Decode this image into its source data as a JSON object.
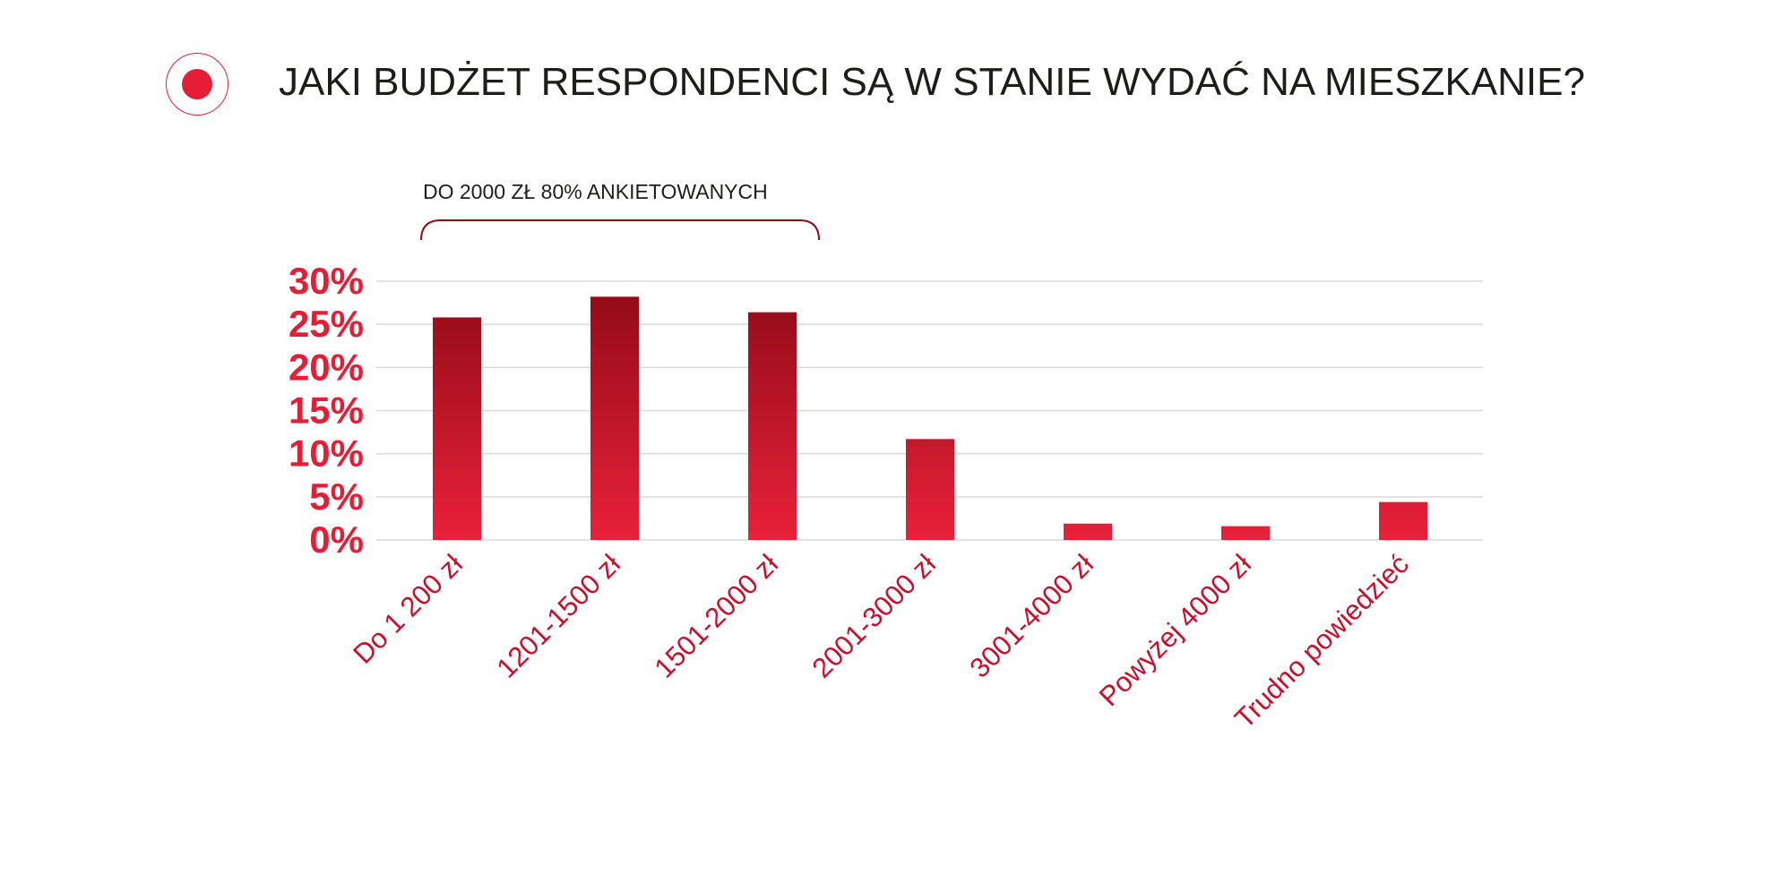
{
  "header": {
    "title": "JAKI BUDŻET RESPONDENCI SĄ W STANIE WYDAĆ NA MIESZKANIE?"
  },
  "colors": {
    "accent": "#e31e35",
    "dark_red": "#8f0a16",
    "label_red": "#c8102e",
    "title_text": "#1d1d1b",
    "grid": "#d9d9d9"
  },
  "chart_data": {
    "type": "bar",
    "title": "",
    "xlabel": "",
    "ylabel": "",
    "categories": [
      "Do 1 200 zł",
      "1201-1500 zł",
      "1501-2000 zł",
      "2001-3000 zł",
      "3001-4000 zł",
      "Powyżej 4000 zł",
      "Trudno powiedzieć"
    ],
    "values": [
      25.8,
      28.2,
      26.4,
      11.7,
      1.9,
      1.6,
      4.4
    ],
    "ylim": [
      0,
      30
    ],
    "yticks": [
      0,
      5,
      10,
      15,
      20,
      25,
      30
    ],
    "ytick_labels": [
      "0%",
      "5%",
      "10%",
      "15%",
      "20%",
      "25%",
      "30%"
    ],
    "grid": true,
    "annotation": {
      "text": "DO 2000 ZŁ 80% ANKIETOWANYCH",
      "spans_categories": [
        0,
        2
      ]
    }
  }
}
